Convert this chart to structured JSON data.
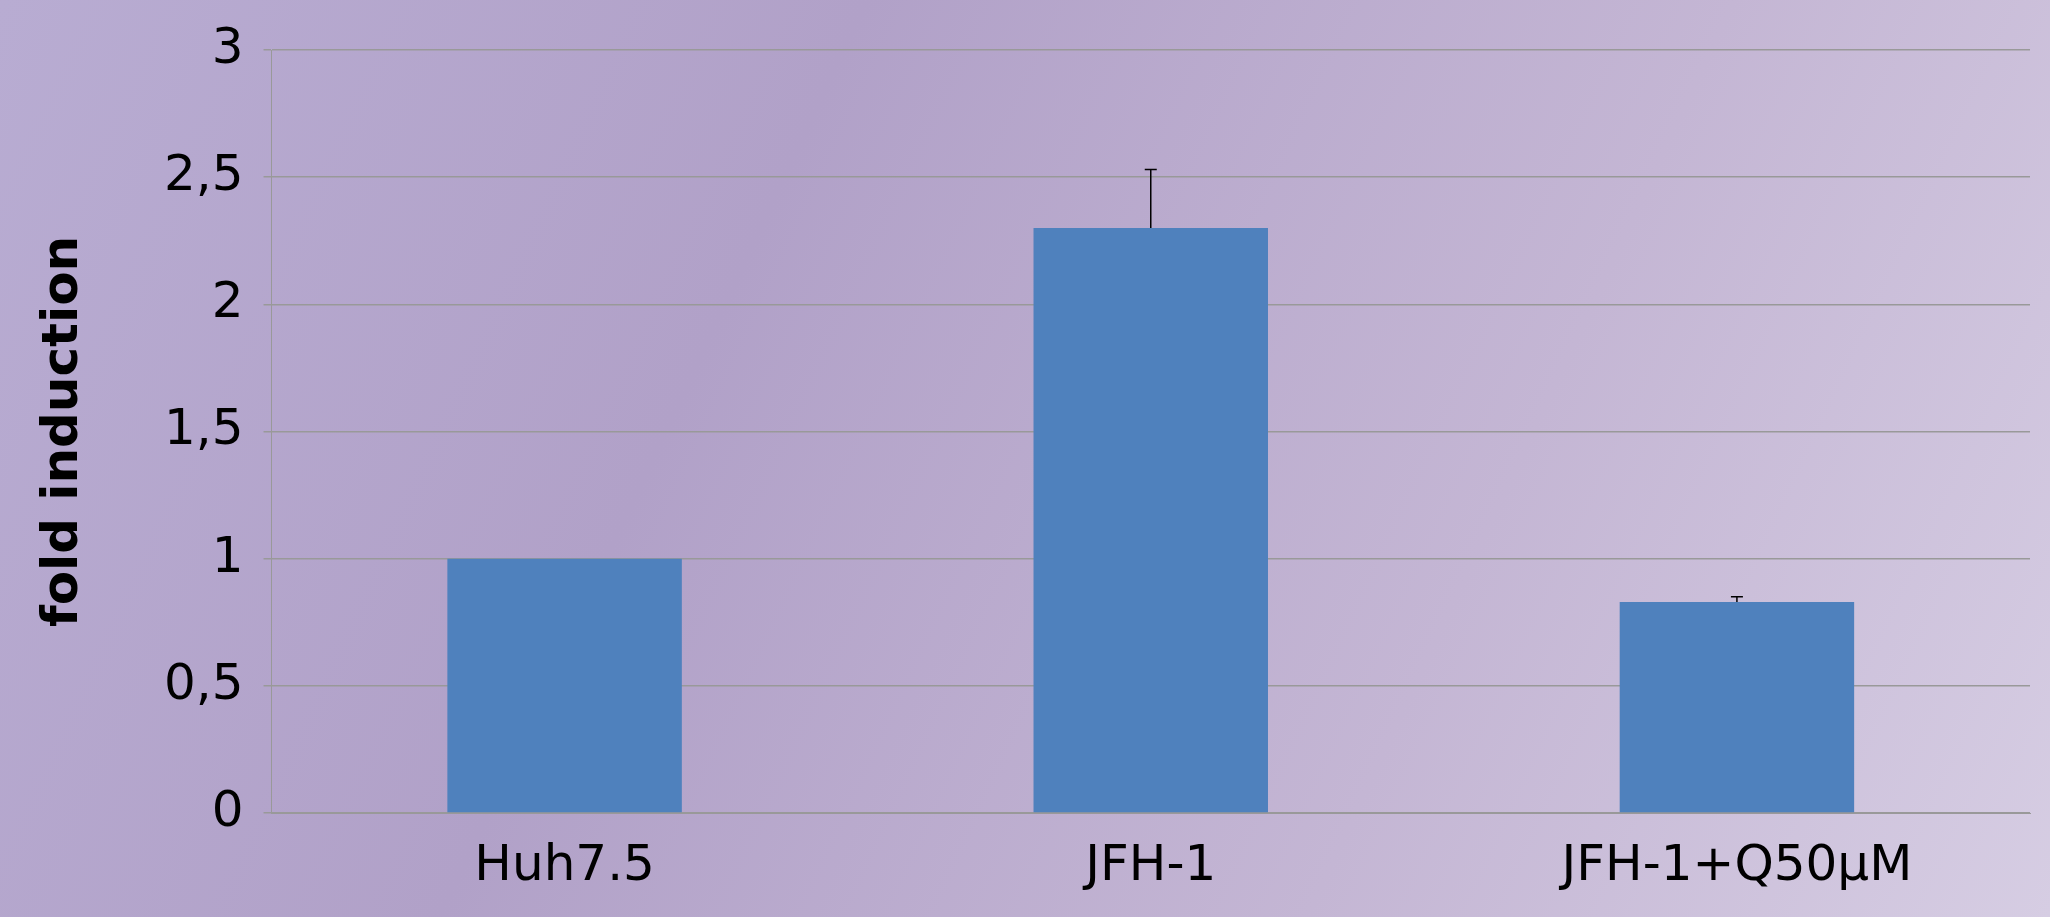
{
  "chart_data": {
    "type": "bar",
    "ylabel": "fold induction",
    "categories": [
      "Huh7.5",
      "JFH-1",
      "JFH-1+Q50µM"
    ],
    "values": [
      1.0,
      2.3,
      0.83
    ],
    "errors": [
      null,
      [
        2.3,
        2.53
      ],
      [
        0.83,
        0.85
      ]
    ],
    "color": "#4f81bd",
    "ylim": [
      0,
      3
    ],
    "yticks": [
      0,
      {
        "value": 0.5,
        "label": "0,5"
      },
      1,
      {
        "value": 1.5,
        "label": "1,5"
      },
      2,
      {
        "value": 2.5,
        "label": "2,5"
      },
      3
    ],
    "grid": "y",
    "legend": false
  }
}
